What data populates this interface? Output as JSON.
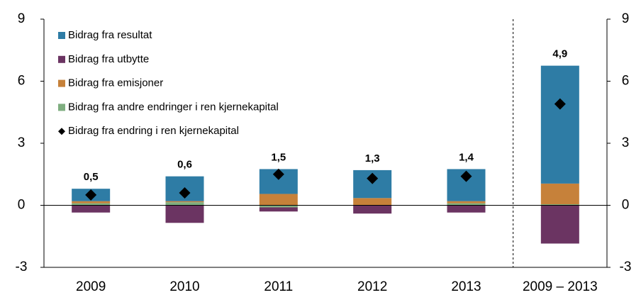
{
  "chart_data": {
    "type": "bar",
    "stacked": true,
    "categories": [
      "2009",
      "2010",
      "2011",
      "2012",
      "2013",
      "2009 – 2013"
    ],
    "series": [
      {
        "name": "Bidrag fra resultat",
        "color": "#2e7ca5",
        "values": [
          0.6,
          1.2,
          1.2,
          1.35,
          1.55,
          5.7
        ]
      },
      {
        "name": "Bidrag fra utbytte",
        "color": "#6b3462",
        "values": [
          -0.35,
          -0.85,
          -0.2,
          -0.4,
          -0.35,
          -1.85
        ]
      },
      {
        "name": "Bidrag fra emisjoner",
        "color": "#c6813a",
        "values": [
          0.1,
          0.05,
          0.55,
          0.35,
          0.1,
          1.0
        ]
      },
      {
        "name": "Bidrag fra andre endringer i ren kjernekapital",
        "color": "#7fae80",
        "values": [
          0.1,
          0.15,
          -0.1,
          0.0,
          0.1,
          0.05
        ]
      },
      {
        "name": "Bidrag fra endring i ren kjernekapital",
        "color": "#000000",
        "marker": "diamond",
        "values": [
          0.5,
          0.6,
          1.5,
          1.3,
          1.4,
          4.9
        ],
        "value_labels": [
          "0,5",
          "0,6",
          "1,5",
          "1,3",
          "1,4",
          "4,9"
        ]
      }
    ],
    "ylim": [
      -3,
      9
    ],
    "yticks": [
      -3,
      0,
      3,
      6,
      9
    ],
    "y2lim": [
      -3,
      9
    ],
    "y2ticks": [
      -3,
      0,
      3,
      6,
      9
    ],
    "legend": "upper left"
  }
}
